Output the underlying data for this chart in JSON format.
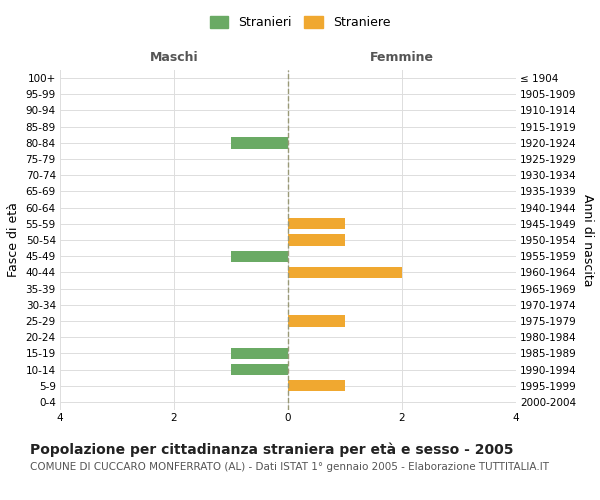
{
  "age_groups": [
    "100+",
    "95-99",
    "90-94",
    "85-89",
    "80-84",
    "75-79",
    "70-74",
    "65-69",
    "60-64",
    "55-59",
    "50-54",
    "45-49",
    "40-44",
    "35-39",
    "30-34",
    "25-29",
    "20-24",
    "15-19",
    "10-14",
    "5-9",
    "0-4"
  ],
  "birth_years": [
    "≤ 1904",
    "1905-1909",
    "1910-1914",
    "1915-1919",
    "1920-1924",
    "1925-1929",
    "1930-1934",
    "1935-1939",
    "1940-1944",
    "1945-1949",
    "1950-1954",
    "1955-1959",
    "1960-1964",
    "1965-1969",
    "1970-1974",
    "1975-1979",
    "1980-1984",
    "1985-1989",
    "1990-1994",
    "1995-1999",
    "2000-2004"
  ],
  "males": [
    0,
    0,
    0,
    0,
    1,
    0,
    0,
    0,
    0,
    0,
    0,
    1,
    0,
    0,
    0,
    0,
    0,
    1,
    1,
    0,
    0
  ],
  "females": [
    0,
    0,
    0,
    0,
    0,
    0,
    0,
    0,
    0,
    1,
    1,
    0,
    2,
    0,
    0,
    1,
    0,
    0,
    0,
    1,
    0
  ],
  "male_color": "#6aaa64",
  "female_color": "#f0a830",
  "bar_height": 0.7,
  "xlim": [
    -4,
    4
  ],
  "xticks": [
    -4,
    -2,
    0,
    2,
    4
  ],
  "xlabel_left": "Maschi",
  "xlabel_right": "Femmine",
  "ylabel_left": "Fasce di età",
  "ylabel_right": "Anni di nascita",
  "legend_stranieri": "Stranieri",
  "legend_straniere": "Straniere",
  "title": "Popolazione per cittadinanza straniera per età e sesso - 2005",
  "subtitle": "COMUNE DI CUCCARO MONFERRATO (AL) - Dati ISTAT 1° gennaio 2005 - Elaborazione TUTTITALIA.IT",
  "center_line_color": "#999977",
  "grid_color": "#dddddd",
  "background_color": "#ffffff",
  "title_fontsize": 10,
  "subtitle_fontsize": 7.5,
  "tick_fontsize": 7.5,
  "label_fontsize": 9,
  "legend_fontsize": 9
}
